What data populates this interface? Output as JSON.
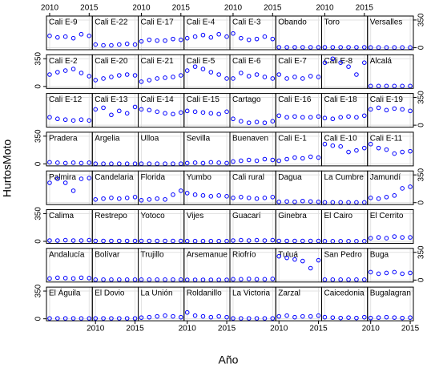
{
  "chart_data": {
    "type": "scatter",
    "xlabel": "Año",
    "ylabel": "HurtosMoto",
    "x": [
      2010,
      2011,
      2012,
      2013,
      2014,
      2015
    ],
    "xlim": [
      2009.6,
      2015.4
    ],
    "xticks": [
      2010,
      2015
    ],
    "ylim": [
      -25,
      400
    ],
    "yticks": [
      0,
      350
    ],
    "grid": true,
    "series": [
      {
        "name": "Cali E-9",
        "color": "#0000ff",
        "values": [
          150,
          130,
          140,
          120,
          170,
          150
        ]
      },
      {
        "name": "Cali E-22",
        "color": "#0000ff",
        "values": [
          40,
          30,
          30,
          40,
          50,
          40
        ]
      },
      {
        "name": "Cali E-17",
        "color": "#0000ff",
        "values": [
          80,
          100,
          90,
          90,
          110,
          100
        ]
      },
      {
        "name": "Cali E-4",
        "color": "#0000ff",
        "values": [
          120,
          140,
          160,
          130,
          170,
          140
        ]
      },
      {
        "name": "Cali E-3",
        "color": "#0000ff",
        "values": [
          180,
          120,
          100,
          110,
          140,
          110
        ]
      },
      {
        "name": "Obando",
        "color": "#0000ff",
        "values": [
          5,
          5,
          5,
          5,
          5,
          5
        ]
      },
      {
        "name": "Toro",
        "color": "#0000ff",
        "values": [
          5,
          5,
          5,
          5,
          5,
          5
        ]
      },
      {
        "name": "Versalles",
        "color": "#0000ff",
        "values": [
          3,
          3,
          3,
          3,
          3,
          3
        ]
      },
      {
        "name": "Cali E-2",
        "color": "#0000ff",
        "values": [
          150,
          180,
          200,
          220,
          170,
          130
        ]
      },
      {
        "name": "Cali E-20",
        "color": "#0000ff",
        "values": [
          80,
          100,
          120,
          140,
          150,
          140
        ]
      },
      {
        "name": "Cali E-21",
        "color": "#0000ff",
        "values": [
          60,
          80,
          100,
          110,
          120,
          140
        ]
      },
      {
        "name": "Cali E-5",
        "color": "#0000ff",
        "values": [
          200,
          250,
          220,
          180,
          150,
          100
        ]
      },
      {
        "name": "Cali E-6",
        "color": "#0000ff",
        "values": [
          100,
          170,
          130,
          150,
          120,
          100
        ]
      },
      {
        "name": "Cali E-7",
        "color": "#0000ff",
        "values": [
          150,
          100,
          120,
          100,
          130,
          120
        ]
      },
      {
        "name": "Cali E-8",
        "color": "#0000ff",
        "values": [
          300,
          350,
          300,
          250,
          150,
          300
        ]
      },
      {
        "name": "Alcalá",
        "color": "#0000ff",
        "values": [
          5,
          5,
          5,
          5,
          5,
          5
        ]
      },
      {
        "name": "Cali E-12",
        "color": "#0000ff",
        "values": [
          100,
          80,
          70,
          60,
          70,
          60
        ]
      },
      {
        "name": "Cali E-13",
        "color": "#0000ff",
        "values": [
          200,
          220,
          130,
          180,
          150,
          230
        ]
      },
      {
        "name": "Cali E-14",
        "color": "#0000ff",
        "values": [
          200,
          190,
          170,
          150,
          140,
          160
        ]
      },
      {
        "name": "Cali E-15",
        "color": "#0000ff",
        "values": [
          180,
          170,
          160,
          150,
          140,
          170
        ]
      },
      {
        "name": "Cartago",
        "color": "#0000ff",
        "values": [
          80,
          50,
          30,
          40,
          30,
          50
        ]
      },
      {
        "name": "Cali E-16",
        "color": "#0000ff",
        "values": [
          120,
          100,
          110,
          100,
          100,
          110
        ]
      },
      {
        "name": "Cali E-18",
        "color": "#0000ff",
        "values": [
          90,
          80,
          100,
          110,
          100,
          120
        ]
      },
      {
        "name": "Cali E-19",
        "color": "#0000ff",
        "values": [
          200,
          220,
          190,
          210,
          200,
          180
        ]
      },
      {
        "name": "Pradera",
        "color": "#0000ff",
        "values": [
          20,
          15,
          10,
          15,
          10,
          15
        ]
      },
      {
        "name": "Argelia",
        "color": "#0000ff",
        "values": [
          2,
          2,
          2,
          2,
          2,
          2
        ]
      },
      {
        "name": "Ulloa",
        "color": "#0000ff",
        "values": [
          2,
          2,
          2,
          2,
          2,
          2
        ]
      },
      {
        "name": "Sevilla",
        "color": "#0000ff",
        "values": [
          10,
          15,
          10,
          20,
          15,
          10
        ]
      },
      {
        "name": "Buenaven",
        "color": "#0000ff",
        "values": [
          30,
          40,
          50,
          40,
          60,
          50
        ]
      },
      {
        "name": "Cali E-1",
        "color": "#0000ff",
        "values": [
          40,
          60,
          80,
          70,
          90,
          80
        ]
      },
      {
        "name": "Cali E-10",
        "color": "#0000ff",
        "values": [
          250,
          230,
          220,
          150,
          170,
          200
        ]
      },
      {
        "name": "Cali E-11",
        "color": "#0000ff",
        "values": [
          250,
          200,
          180,
          130,
          150,
          160
        ]
      },
      {
        "name": "Palmira",
        "color": "#0000ff",
        "values": [
          250,
          300,
          250,
          150,
          300,
          310
        ]
      },
      {
        "name": "Candelaria",
        "color": "#0000ff",
        "values": [
          40,
          50,
          60,
          50,
          60,
          70
        ]
      },
      {
        "name": "Florida",
        "color": "#0000ff",
        "values": [
          30,
          40,
          50,
          40,
          100,
          150
        ]
      },
      {
        "name": "Yumbo",
        "color": "#0000ff",
        "values": [
          120,
          100,
          90,
          80,
          90,
          80
        ]
      },
      {
        "name": "Cali rural",
        "color": "#0000ff",
        "values": [
          60,
          70,
          60,
          50,
          60,
          70
        ]
      },
      {
        "name": "Dagua",
        "color": "#0000ff",
        "values": [
          10,
          15,
          10,
          20,
          15,
          10
        ]
      },
      {
        "name": "La Cumbre",
        "color": "#0000ff",
        "values": [
          3,
          3,
          3,
          3,
          3,
          3
        ]
      },
      {
        "name": "Jamundí",
        "color": "#0000ff",
        "values": [
          60,
          50,
          70,
          90,
          180,
          200
        ]
      },
      {
        "name": "Calima",
        "color": "#0000ff",
        "values": [
          10,
          10,
          15,
          10,
          10,
          15
        ]
      },
      {
        "name": "Restrepo",
        "color": "#0000ff",
        "values": [
          5,
          5,
          5,
          5,
          5,
          5
        ]
      },
      {
        "name": "Yotoco",
        "color": "#0000ff",
        "values": [
          5,
          5,
          5,
          5,
          5,
          5
        ]
      },
      {
        "name": "Vijes",
        "color": "#0000ff",
        "values": [
          3,
          3,
          3,
          3,
          3,
          3
        ]
      },
      {
        "name": "Guacarí",
        "color": "#0000ff",
        "values": [
          10,
          15,
          10,
          15,
          10,
          15
        ]
      },
      {
        "name": "Ginebra",
        "color": "#0000ff",
        "values": [
          5,
          5,
          5,
          5,
          5,
          5
        ]
      },
      {
        "name": "El Cairo",
        "color": "#0000ff",
        "values": [
          2,
          2,
          2,
          2,
          2,
          2
        ]
      },
      {
        "name": "El Cerrito",
        "color": "#0000ff",
        "values": [
          40,
          50,
          40,
          60,
          50,
          50
        ]
      },
      {
        "name": "Andalucía",
        "color": "#0000ff",
        "values": [
          20,
          30,
          25,
          20,
          30,
          25
        ]
      },
      {
        "name": "Bolívar",
        "color": "#0000ff",
        "values": [
          5,
          5,
          5,
          5,
          5,
          5
        ]
      },
      {
        "name": "Trujillo",
        "color": "#0000ff",
        "values": [
          5,
          5,
          5,
          5,
          5,
          5
        ]
      },
      {
        "name": "Arsemanue",
        "color": "#0000ff",
        "values": [
          3,
          3,
          3,
          3,
          3,
          3
        ]
      },
      {
        "name": "Riofrío",
        "color": "#0000ff",
        "values": [
          10,
          10,
          15,
          10,
          10,
          15
        ]
      },
      {
        "name": "Tuluá",
        "color": "#0000ff",
        "values": [
          300,
          280,
          260,
          240,
          150,
          250
        ]
      },
      {
        "name": "San Pedro",
        "color": "#0000ff",
        "values": [
          5,
          5,
          5,
          5,
          5,
          5
        ]
      },
      {
        "name": "Buga",
        "color": "#0000ff",
        "values": [
          100,
          80,
          90,
          100,
          80,
          90
        ]
      },
      {
        "name": "El Águila",
        "color": "#0000ff",
        "values": [
          5,
          5,
          5,
          5,
          5,
          5
        ]
      },
      {
        "name": "El Dovio",
        "color": "#0000ff",
        "values": [
          5,
          5,
          5,
          5,
          5,
          5
        ]
      },
      {
        "name": "La Unión",
        "color": "#0000ff",
        "values": [
          15,
          20,
          30,
          40,
          30,
          20
        ]
      },
      {
        "name": "Roldanillo",
        "color": "#0000ff",
        "values": [
          80,
          40,
          30,
          20,
          30,
          20
        ]
      },
      {
        "name": "La Victoria",
        "color": "#0000ff",
        "values": [
          5,
          5,
          5,
          5,
          5,
          5
        ]
      },
      {
        "name": "Zarzal",
        "color": "#0000ff",
        "values": [
          30,
          40,
          20,
          30,
          30,
          40
        ]
      },
      {
        "name": "Caicedonia",
        "color": "#0000ff",
        "values": [
          20,
          15,
          10,
          15,
          10,
          20
        ]
      },
      {
        "name": "Bugalagran",
        "color": "#0000ff",
        "values": [
          10,
          15,
          20,
          15,
          10,
          15
        ]
      }
    ]
  }
}
